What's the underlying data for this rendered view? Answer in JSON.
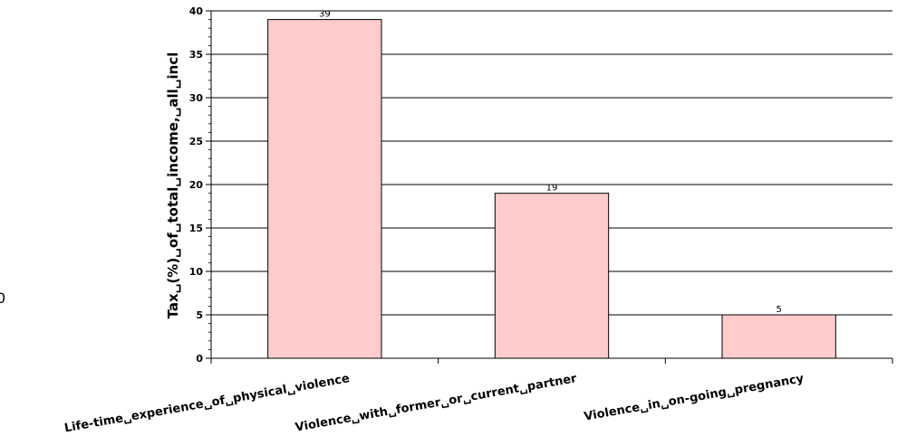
{
  "stray_glyph": "0",
  "chart_data": {
    "type": "bar",
    "title": "",
    "xlabel": "",
    "ylabel": "Tax␣(%)␣of␣total␣income,␣all␣incl",
    "categories": [
      "Life-time␣experience␣of␣physical␣violence",
      "Violence␣with␣former␣or␣current␣partner",
      "Violence␣in␣on-going␣pregnancy"
    ],
    "series": [
      {
        "values": [
          39,
          19,
          5
        ]
      }
    ],
    "data_labels": [
      "39",
      "19",
      "5"
    ],
    "ylim": [
      0,
      40
    ],
    "y_ticks": [
      0,
      5,
      10,
      15,
      20,
      25,
      30,
      35,
      40
    ],
    "grid": true,
    "legend": "none",
    "colors": {
      "bar_fill": "#ffcccc",
      "bar_stroke": "#000000",
      "grid": "#000000",
      "axis": "#000000"
    }
  }
}
